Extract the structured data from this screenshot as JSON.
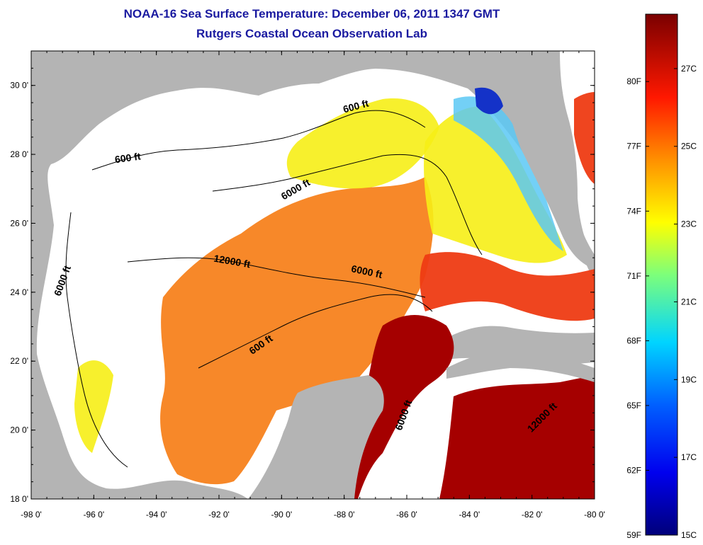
{
  "title": {
    "line1": "NOAA-16 Sea Surface Temperature:  December 06, 2011 1347 GMT",
    "line2": "Rutgers Coastal Ocean Observation Lab"
  },
  "map": {
    "lon_range": [
      -98,
      -80
    ],
    "lat_range": [
      18,
      31
    ],
    "x_ticks": [
      {
        "value": -98,
        "label": "-98 0'"
      },
      {
        "value": -96,
        "label": "-96 0'"
      },
      {
        "value": -94,
        "label": "-94 0'"
      },
      {
        "value": -92,
        "label": "-92 0'"
      },
      {
        "value": -90,
        "label": "-90 0'"
      },
      {
        "value": -88,
        "label": "-88 0'"
      },
      {
        "value": -86,
        "label": "-86 0'"
      },
      {
        "value": -84,
        "label": "-84 0'"
      },
      {
        "value": -82,
        "label": "-82 0'"
      },
      {
        "value": -80,
        "label": "-80 0'"
      }
    ],
    "y_ticks": [
      {
        "value": 18,
        "label": "18 0'"
      },
      {
        "value": 20,
        "label": "20 0'"
      },
      {
        "value": 22,
        "label": "22 0'"
      },
      {
        "value": 24,
        "label": "24 0'"
      },
      {
        "value": 26,
        "label": "26 0'"
      },
      {
        "value": 28,
        "label": "28 0'"
      },
      {
        "value": 30,
        "label": "30 0'"
      }
    ],
    "contour_labels": [
      {
        "text": "600 ft",
        "lon": -94.9,
        "lat": 27.8,
        "angle": -8
      },
      {
        "text": "600 ft",
        "lon": -87.6,
        "lat": 29.3,
        "angle": -15
      },
      {
        "text": "6000 ft",
        "lon": -89.5,
        "lat": 26.9,
        "angle": -30
      },
      {
        "text": "12000 ft",
        "lon": -91.6,
        "lat": 24.8,
        "angle": 10
      },
      {
        "text": "6000 ft",
        "lon": -87.3,
        "lat": 24.5,
        "angle": 12
      },
      {
        "text": "6000 ft",
        "lon": -96.9,
        "lat": 24.3,
        "angle": -70
      },
      {
        "text": "600 ft",
        "lon": -90.6,
        "lat": 22.4,
        "angle": -35
      },
      {
        "text": "6000 ft",
        "lon": -86.0,
        "lat": 20.4,
        "angle": -70
      },
      {
        "text": "12000 ft",
        "lon": -81.6,
        "lat": 20.3,
        "angle": -45
      }
    ],
    "colors": {
      "land": "#b4b4b4",
      "cloud": "#ffffff",
      "very_warm": "#a50000",
      "warm": "#ee3b13",
      "medium": "#f7821e",
      "cool": "#f6ee16",
      "cold": "#5ac8f5",
      "coldest": "#1432c8"
    }
  },
  "colorbar": {
    "fahrenheit_labels": [
      {
        "value": 80,
        "label": "80F"
      },
      {
        "value": 77,
        "label": "77F"
      },
      {
        "value": 74,
        "label": "74F"
      },
      {
        "value": 71,
        "label": "71F"
      },
      {
        "value": 68,
        "label": "68F"
      },
      {
        "value": 65,
        "label": "65F"
      },
      {
        "value": 62,
        "label": "62F"
      },
      {
        "value": 59,
        "label": "59F"
      }
    ],
    "celsius_labels": [
      {
        "value": 27,
        "label": "27C"
      },
      {
        "value": 25,
        "label": "25C"
      },
      {
        "value": 23,
        "label": "23C"
      },
      {
        "value": 21,
        "label": "21C"
      },
      {
        "value": 19,
        "label": "19C"
      },
      {
        "value": 17,
        "label": "17C"
      },
      {
        "value": 15,
        "label": "15C"
      }
    ],
    "range_c": [
      15,
      28.4
    ]
  }
}
